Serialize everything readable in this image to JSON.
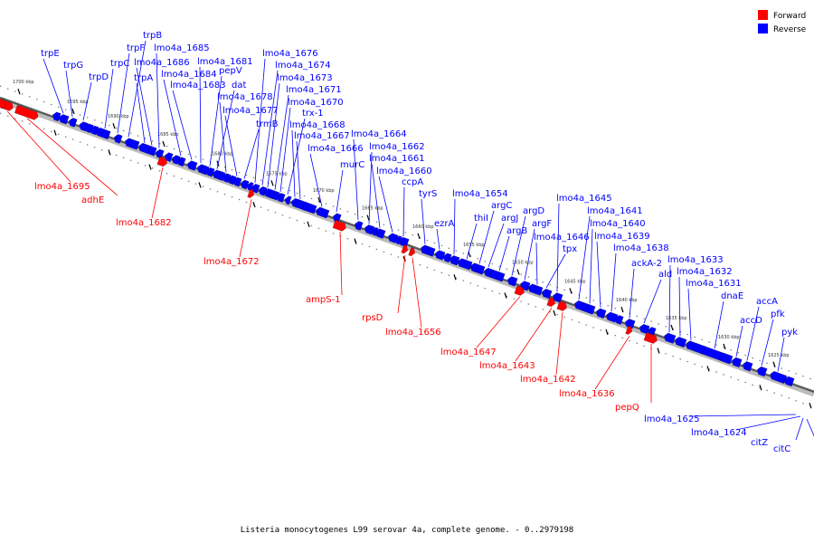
{
  "caption": "Listeria monocytogenes L99 serovar 4a, complete genome. - 0..2979198",
  "legend": [
    {
      "label": "Forward",
      "color": "#ff0000"
    },
    {
      "label": "Reverse",
      "color": "#0000ff"
    }
  ],
  "colors": {
    "forward": "#ff0000",
    "reverse": "#0000ff",
    "track": "#888888"
  },
  "scale_ticks": [
    "1700 kbp",
    "1695 kbp",
    "1690 kbp",
    "1685 kbp",
    "1680 kbp",
    "1675 kbp",
    "1670 kbp",
    "1665 kbp",
    "1660 kbp",
    "1655 kbp",
    "1650 kbp",
    "1645 kbp",
    "1640 kbp",
    "1635 kbp",
    "1630 kbp",
    "1625 kbp"
  ],
  "reverse_genes": [
    "trpE",
    "trpG",
    "trpD",
    "trpC",
    "trpF",
    "trpB",
    "trpA",
    "lmo4a_1686",
    "lmo4a_1685",
    "lmo4a_1684",
    "lmo4a_1683",
    "lmo4a_1681",
    "pepV",
    "dat",
    "lmo4a_1678",
    "lmo4a_1677",
    "trmB",
    "lmo4a_1676",
    "lmo4a_1674",
    "lmo4a_1673",
    "lmo4a_1671",
    "lmo4a_1670",
    "trx-1",
    "lmo4a_1668",
    "lmo4a_1667",
    "lmo4a_1666",
    "murC",
    "lmo4a_1664",
    "lmo4a_1662",
    "lmo4a_1661",
    "lmo4a_1660",
    "ccpA",
    "tyrS",
    "ezrA",
    "lmo4a_1654",
    "thiI",
    "argC",
    "argJ",
    "argB",
    "argD",
    "argF",
    "lmo4a_1646",
    "tpx",
    "lmo4a_1645",
    "lmo4a_1641",
    "lmo4a_1640",
    "lmo4a_1639",
    "lmo4a_1638",
    "ackA-2",
    "ald",
    "lmo4a_1633",
    "lmo4a_1632",
    "lmo4a_1631",
    "dnaE",
    "accD",
    "accA",
    "pfk",
    "pyk",
    "lmo4a_1625",
    "lmo4a_1624",
    "citZ",
    "citC"
  ],
  "forward_genes": [
    "lmo4a_1695",
    "adhE",
    "lmo4a_1682",
    "lmo4a_1672",
    "ampS-1",
    "rpsD",
    "lmo4a_1656",
    "lmo4a_1647",
    "lmo4a_1643",
    "lmo4a_1642",
    "lmo4a_1636",
    "pepQ"
  ]
}
